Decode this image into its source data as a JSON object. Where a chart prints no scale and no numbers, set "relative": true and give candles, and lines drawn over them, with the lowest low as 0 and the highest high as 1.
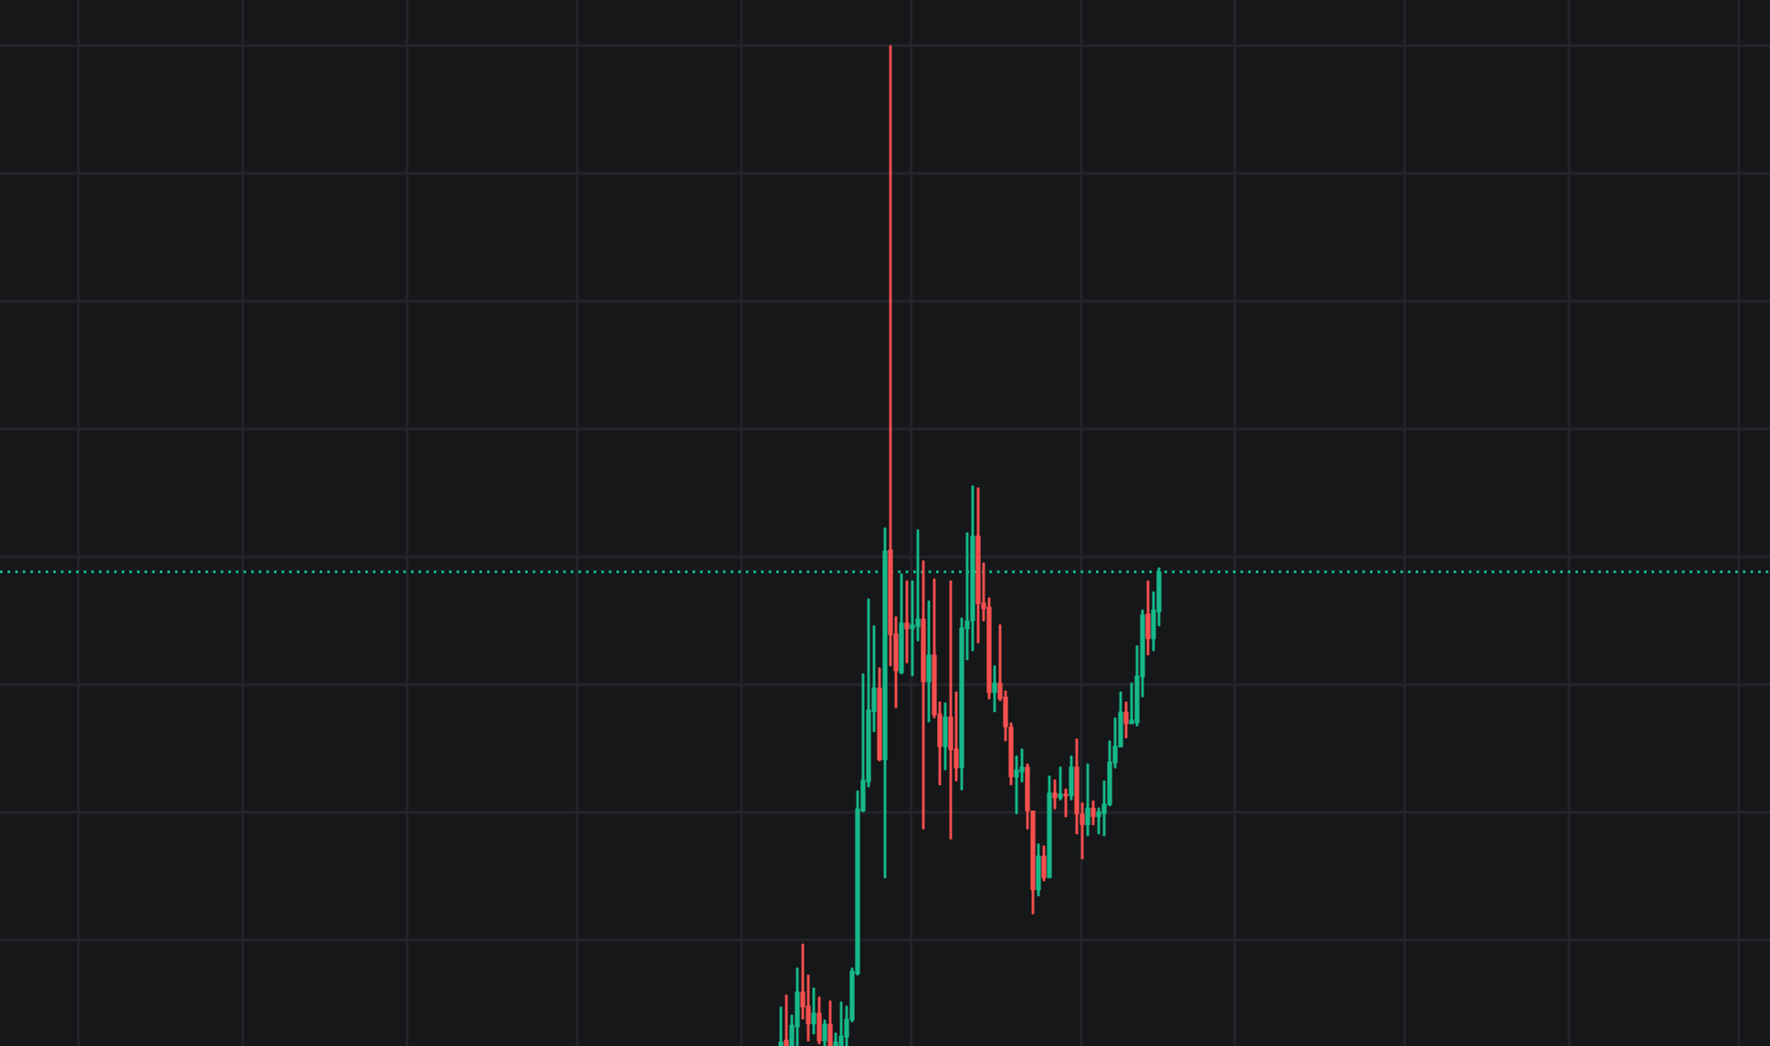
{
  "chart_data": {
    "type": "candlestick",
    "relative": true,
    "grid": true,
    "categories": [
      null,
      null,
      null,
      null,
      null,
      null,
      null,
      null,
      null,
      null,
      null,
      null,
      null,
      null,
      null,
      null,
      null,
      null,
      null,
      null,
      null,
      null,
      null,
      null,
      null,
      null,
      null,
      null,
      null,
      null,
      null,
      null,
      null,
      null,
      null,
      null,
      null,
      null,
      null,
      null,
      null,
      null,
      null,
      null,
      null,
      null,
      null,
      null,
      null,
      null,
      null,
      null,
      null,
      null,
      null,
      null,
      null,
      null,
      null,
      null,
      null,
      null,
      null,
      null,
      null,
      null,
      null,
      null,
      null,
      null,
      null,
      null,
      null,
      null,
      null,
      null,
      null,
      null,
      null,
      null,
      null,
      null,
      null,
      null,
      null,
      null,
      null,
      null,
      null,
      null,
      null,
      null,
      null,
      null,
      null,
      null,
      null,
      null,
      null,
      null,
      null,
      null,
      null,
      null,
      null,
      null,
      null,
      null,
      null,
      null,
      null,
      null,
      null,
      null,
      null,
      null,
      null,
      null,
      null,
      null,
      null,
      null,
      null,
      null,
      null,
      null,
      null,
      null,
      null,
      null,
      null,
      null,
      null,
      null,
      null,
      null,
      null,
      null,
      null,
      null,
      null,
      null,
      null,
      null,
      null,
      null,
      null,
      null,
      null,
      null,
      null,
      null,
      null,
      null,
      null,
      null,
      null,
      null,
      null,
      null,
      null,
      null,
      null,
      null,
      null,
      null,
      null,
      null,
      null,
      null,
      null,
      null,
      null,
      null,
      null,
      null,
      null,
      null,
      null,
      null,
      null,
      null,
      null,
      null,
      null,
      null,
      null,
      null,
      null,
      null,
      null,
      null,
      null,
      null,
      null,
      null,
      null,
      null,
      null,
      null,
      null,
      null,
      null,
      null,
      null,
      null,
      null,
      null,
      null,
      null,
      null,
      null,
      null,
      null,
      null,
      null,
      null,
      null,
      null,
      null,
      null,
      null,
      null,
      null,
      null,
      null,
      null,
      null,
      null,
      null,
      null,
      null,
      null,
      null,
      null,
      null,
      null,
      null,
      null,
      null,
      null,
      null,
      null,
      null,
      null,
      null,
      null,
      null,
      null,
      null,
      null,
      null,
      null,
      null,
      null,
      null,
      null,
      null,
      null,
      null,
      null,
      null,
      null,
      null,
      null,
      null,
      null,
      null,
      null,
      null,
      null,
      null,
      null,
      null,
      null,
      null,
      null,
      null,
      null,
      null,
      null,
      null,
      null,
      null,
      null,
      null,
      null,
      null,
      null,
      null,
      null,
      null,
      null,
      null,
      null,
      null,
      null,
      null,
      null,
      null,
      null,
      null,
      null,
      null,
      null,
      null,
      null,
      null,
      null,
      null,
      null,
      null,
      null,
      null,
      null,
      null,
      null,
      null,
      null,
      null,
      null,
      null,
      null
    ],
    "ohlc": [
      null,
      null,
      null,
      null,
      null,
      null,
      null,
      null,
      null,
      null,
      null,
      null,
      null,
      null,
      null,
      null,
      null,
      null,
      null,
      null,
      null,
      null,
      null,
      null,
      null,
      null,
      null,
      null,
      null,
      null,
      null,
      null,
      null,
      null,
      null,
      null,
      null,
      null,
      null,
      null,
      null,
      null,
      null,
      null,
      null,
      null,
      null,
      null,
      null,
      null,
      null,
      null,
      null,
      null,
      null,
      null,
      null,
      null,
      null,
      null,
      null,
      null,
      null,
      null,
      null,
      null,
      null,
      null,
      null,
      null,
      null,
      null,
      null,
      null,
      null,
      null,
      null,
      null,
      null,
      null,
      null,
      null,
      null,
      null,
      null,
      null,
      null,
      null,
      null,
      null,
      null,
      null,
      null,
      null,
      null,
      null,
      null,
      null,
      null,
      null,
      null,
      null,
      null,
      null,
      null,
      null,
      null,
      null,
      null,
      null,
      null,
      null,
      null,
      null,
      null,
      null,
      null,
      null,
      null,
      null,
      null,
      null,
      null,
      null,
      null,
      null,
      null,
      null,
      null,
      null,
      null,
      null,
      null,
      null,
      null,
      null,
      null,
      null,
      null,
      null,
      null,
      null,
      [
        0,
        0.039,
        0,
        0.004
      ],
      [
        0.006,
        0.051,
        0,
        0
      ],
      [
        0,
        0.031,
        0,
        0.021
      ],
      [
        0.019,
        0.078,
        0,
        0.054
      ],
      [
        0.054,
        0.102,
        0.027,
        0.039
      ],
      [
        0.04,
        0.071,
        0.005,
        0.022
      ],
      [
        0.022,
        0.058,
        0.012,
        0.033
      ],
      [
        0.033,
        0.049,
        0.002,
        0.005
      ],
      [
        0.005,
        0.026,
        0,
        0.022
      ],
      [
        0.022,
        0.045,
        0,
        0
      ],
      [
        0,
        0.013,
        0,
        0.004
      ],
      [
        0,
        0.044,
        0,
        0.01
      ],
      [
        0.009,
        0.04,
        0,
        0.027
      ],
      [
        0.026,
        0.078,
        0.024,
        0.075
      ],
      [
        0.072,
        0.255,
        0.071,
        0.237
      ],
      [
        0.235,
        0.372,
        0.234,
        0.266
      ],
      [
        0.264,
        0.447,
        0.259,
        0.336
      ],
      [
        0.334,
        0.42,
        0.314,
        0.358
      ],
      [
        0.358,
        0.378,
        0.285,
        0.286
      ],
      [
        0.286,
        0.518,
        0.168,
        0.495
      ],
      [
        0.496,
        1,
        0.38,
        0.411
      ],
      [
        0.412,
        0.429,
        0.338,
        0.375
      ],
      [
        0.373,
        0.472,
        0.372,
        0.423
      ],
      [
        0.423,
        0.465,
        0.383,
        0.417
      ],
      [
        0.417,
        0.465,
        0.37,
        0.421
      ],
      [
        0.419,
        0.516,
        0.405,
        0.427
      ],
      [
        0.427,
        0.485,
        0.217,
        0.364
      ],
      [
        0.364,
        0.445,
        0.324,
        0.391
      ],
      [
        0.391,
        0.467,
        0.328,
        0.331
      ],
      [
        0.332,
        0.344,
        0.261,
        0.299
      ],
      [
        0.299,
        0.343,
        0.276,
        0.329
      ],
      [
        0.329,
        0.465,
        0.207,
        0.296
      ],
      [
        0.297,
        0.354,
        0.265,
        0.278
      ],
      [
        0.278,
        0.428,
        0.256,
        0.418
      ],
      [
        0.417,
        0.513,
        0.386,
        0.425
      ],
      [
        0.425,
        0.56,
        0.395,
        0.51
      ],
      [
        0.51,
        0.558,
        0.403,
        0.442
      ],
      [
        0.443,
        0.483,
        0.425,
        0.437
      ],
      [
        0.439,
        0.448,
        0.347,
        0.353
      ],
      [
        0.353,
        0.38,
        0.334,
        0.363
      ],
      [
        0.363,
        0.421,
        0.345,
        0.347
      ],
      [
        0.349,
        0.355,
        0.305,
        0.319
      ],
      [
        0.319,
        0.323,
        0.261,
        0.269
      ],
      [
        0.269,
        0.29,
        0.232,
        0.276
      ],
      [
        0.274,
        0.297,
        0.264,
        0.279
      ],
      [
        0.279,
        0.282,
        0.217,
        0.235
      ],
      [
        0.235,
        0.235,
        0.132,
        0.156
      ],
      [
        0.156,
        0.202,
        0.15,
        0.19
      ],
      [
        0.19,
        0.2,
        0.165,
        0.168
      ],
      [
        0.168,
        0.27,
        0.168,
        0.253
      ],
      [
        0.253,
        0.266,
        0.237,
        0.248
      ],
      [
        0.248,
        0.279,
        0.246,
        0.252
      ],
      [
        0.252,
        0.257,
        0.229,
        0.25
      ],
      [
        0.25,
        0.29,
        0.246,
        0.279
      ],
      [
        0.279,
        0.307,
        0.212,
        0.232
      ],
      [
        0.232,
        0.243,
        0.187,
        0.221
      ],
      [
        0.221,
        0.282,
        0.21,
        0.238
      ],
      [
        0.238,
        0.245,
        0.221,
        0.229
      ],
      [
        0.229,
        0.238,
        0.212,
        0.234
      ],
      [
        0.232,
        0.265,
        0.21,
        0.242
      ],
      [
        0.241,
        0.305,
        0.24,
        0.284
      ],
      [
        0.283,
        0.328,
        0.278,
        0.3
      ],
      [
        0.299,
        0.354,
        0.299,
        0.334
      ],
      [
        0.334,
        0.344,
        0.308,
        0.322
      ],
      [
        0.322,
        0.363,
        0.322,
        0.326
      ],
      [
        0.323,
        0.4,
        0.32,
        0.37
      ],
      [
        0.369,
        0.436,
        0.349,
        0.431
      ],
      [
        0.432,
        0.465,
        0.391,
        0.407
      ],
      [
        0.407,
        0.454,
        0.395,
        0.436
      ],
      [
        0.434,
        0.478,
        0.42,
        0.474
      ],
      null,
      null,
      null,
      null,
      null,
      null,
      null,
      null,
      null,
      null,
      null,
      null,
      null,
      null,
      null,
      null,
      null,
      null,
      null,
      null,
      null,
      null,
      null,
      null,
      null,
      null,
      null,
      null,
      null,
      null,
      null,
      null,
      null,
      null,
      null,
      null,
      null,
      null,
      null,
      null,
      null,
      null,
      null,
      null,
      null,
      null,
      null,
      null,
      null,
      null,
      null,
      null,
      null,
      null,
      null,
      null,
      null,
      null,
      null,
      null,
      null,
      null,
      null,
      null,
      null,
      null,
      null,
      null,
      null,
      null,
      null,
      null,
      null,
      null,
      null,
      null,
      null,
      null,
      null,
      null,
      null,
      null,
      null,
      null,
      null,
      null,
      null,
      null,
      null,
      null,
      null,
      null,
      null,
      null,
      null,
      null,
      null,
      null,
      null,
      null,
      null,
      null,
      null,
      null,
      null,
      null,
      null,
      null,
      null,
      null,
      null
    ],
    "colors": [
      null,
      null,
      null,
      null,
      null,
      null,
      null,
      null,
      null,
      null,
      null,
      null,
      null,
      null,
      null,
      null,
      null,
      null,
      null,
      null,
      null,
      null,
      null,
      null,
      null,
      null,
      null,
      null,
      null,
      null,
      null,
      null,
      null,
      null,
      null,
      null,
      null,
      null,
      null,
      null,
      null,
      null,
      null,
      null,
      null,
      null,
      null,
      null,
      null,
      null,
      null,
      null,
      null,
      null,
      null,
      null,
      null,
      null,
      null,
      null,
      null,
      null,
      null,
      null,
      null,
      null,
      null,
      null,
      null,
      null,
      null,
      null,
      null,
      null,
      null,
      null,
      null,
      null,
      null,
      null,
      null,
      null,
      null,
      null,
      null,
      null,
      null,
      null,
      null,
      null,
      null,
      null,
      null,
      null,
      null,
      null,
      null,
      null,
      null,
      null,
      null,
      null,
      null,
      null,
      null,
      null,
      null,
      null,
      null,
      null,
      null,
      null,
      null,
      null,
      null,
      null,
      null,
      null,
      null,
      null,
      null,
      null,
      null,
      null,
      null,
      null,
      null,
      null,
      null,
      null,
      null,
      null,
      null,
      null,
      null,
      null,
      null,
      null,
      null,
      null,
      null,
      null,
      "#17b98b",
      "#f5504f",
      "#17b98b",
      "#17b98b",
      "#f5504f",
      "#f5504f",
      "#17b98b",
      "#f5504f",
      "#17b98b",
      "#f5504f",
      "#17b98b",
      "#17b98b",
      "#17b98b",
      "#17b98b",
      "#17b98b",
      "#17b98b",
      "#17b98b",
      "#17b98b",
      "#f5504f",
      "#17b98b",
      "#f5504f",
      "#f5504f",
      "#17b98b",
      "#f5504f",
      "#17b98b",
      "#17b98b",
      "#f5504f",
      "#17b98b",
      "#f5504f",
      "#f5504f",
      "#17b98b",
      "#f5504f",
      "#f5504f",
      "#17b98b",
      "#17b98b",
      "#17b98b",
      "#f5504f",
      "#f5504f",
      "#f5504f",
      "#17b98b",
      "#f5504f",
      "#f5504f",
      "#f5504f",
      "#17b98b",
      "#17b98b",
      "#f5504f",
      "#f5504f",
      "#17b98b",
      "#f5504f",
      "#17b98b",
      "#f5504f",
      "#17b98b",
      "#f5504f",
      "#17b98b",
      "#f5504f",
      "#f5504f",
      "#17b98b",
      "#f5504f",
      "#17b98b",
      "#17b98b",
      "#17b98b",
      "#17b98b",
      "#17b98b",
      "#f5504f",
      "#17b98b",
      "#17b98b",
      "#17b98b",
      "#f5504f",
      "#17b98b",
      "#17b98b",
      null,
      null,
      null,
      null,
      null,
      null,
      null,
      null,
      null,
      null,
      null,
      null,
      null,
      null,
      null,
      null,
      null,
      null,
      null,
      null,
      null,
      null,
      null,
      null,
      null,
      null,
      null,
      null,
      null,
      null,
      null,
      null,
      null,
      null,
      null,
      null,
      null,
      null,
      null,
      null,
      null,
      null,
      null,
      null,
      null,
      null,
      null,
      null,
      null,
      null,
      null,
      null,
      null,
      null,
      null,
      null,
      null,
      null,
      null,
      null,
      null,
      null,
      null,
      null,
      null,
      null,
      null,
      null,
      null,
      null,
      null,
      null,
      null,
      null,
      null,
      null,
      null,
      null,
      null,
      null,
      null,
      null,
      null,
      null,
      null,
      null,
      null,
      null,
      null,
      null,
      null,
      null,
      null,
      null,
      null,
      null,
      null,
      null,
      null,
      null,
      null,
      null,
      null,
      null,
      null,
      null,
      null,
      null,
      null,
      null,
      null
    ],
    "ref_lines": [
      {
        "axis": "y",
        "value": 0.474,
        "color": "#17b98b",
        "line_style": "dotted"
      }
    ]
  }
}
